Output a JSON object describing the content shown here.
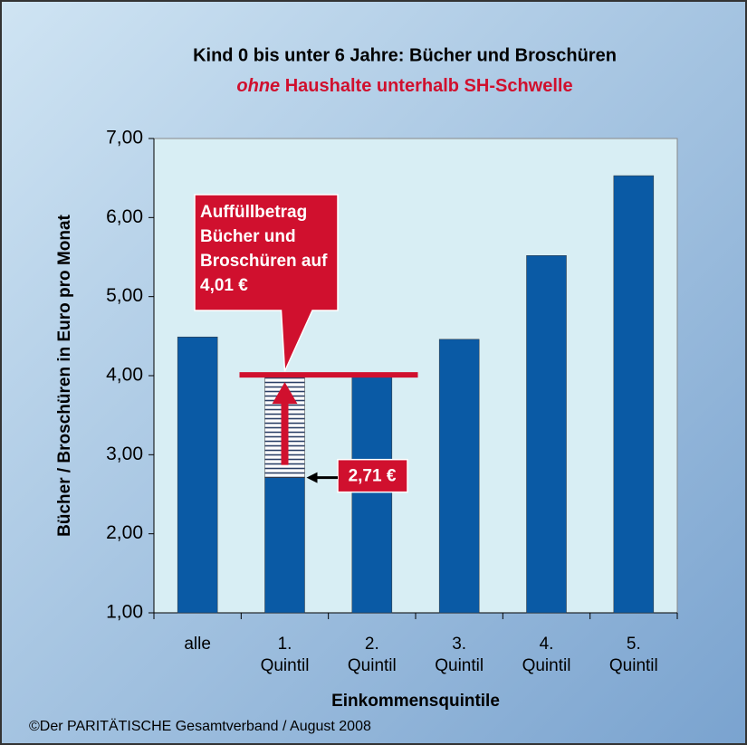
{
  "chart_data": {
    "type": "bar",
    "title": "Kind 0 bis unter 6 Jahre: Bücher und Broschüren",
    "subtitle_emphasis": "ohne",
    "subtitle": "Haushalte unterhalb SH-Schwelle",
    "categories": [
      "alle",
      "1. Quintil",
      "2. Quintil",
      "3. Quintil",
      "4. Quintil",
      "5. Quintil"
    ],
    "values": [
      4.49,
      2.71,
      4.01,
      4.46,
      5.52,
      6.53
    ],
    "color": "#0a5aa5",
    "ylim": [
      1,
      7
    ],
    "yticks": [
      {
        "value": 1,
        "label": "1,00"
      },
      {
        "value": 2,
        "label": "2,00"
      },
      {
        "value": 3,
        "label": "3,00"
      },
      {
        "value": 4,
        "label": "4,00"
      },
      {
        "value": 5,
        "label": "5,00"
      },
      {
        "value": 6,
        "label": "6,00"
      },
      {
        "value": 7,
        "label": "7,00"
      }
    ],
    "grid": false,
    "ylabel": "Bücher / Broschüren in Euro pro Monat",
    "xlabel": "Einkommensquintile",
    "reference_line": {
      "value": 4.01,
      "color": "#d0102e",
      "label": "Auffüllbetrag Bücher und Broschüren auf 4,01 €"
    },
    "bar_label": {
      "index": 1,
      "label": "2,71 €"
    },
    "footer": "©Der PARITÄTISCHE Gesamtverband / August 2008"
  }
}
